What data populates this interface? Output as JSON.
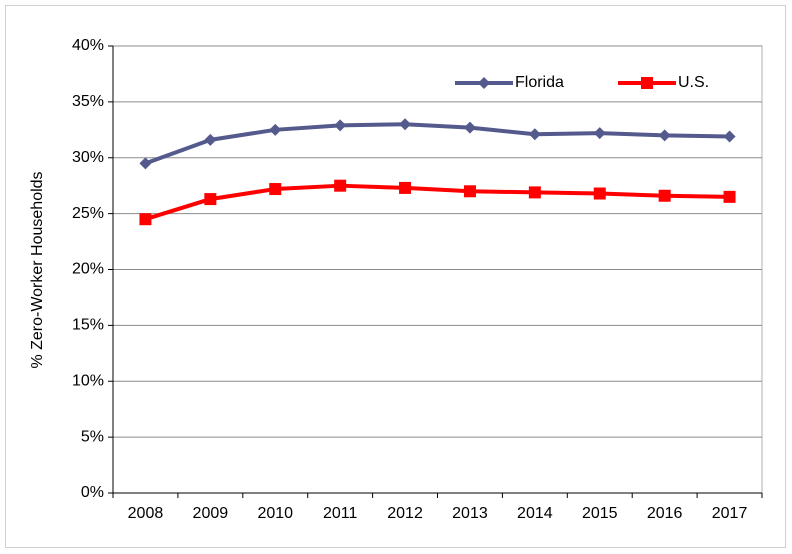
{
  "chart_data": {
    "type": "line",
    "y_label": "% Zero-Worker Households",
    "categories": [
      "2008",
      "2009",
      "2010",
      "2011",
      "2012",
      "2013",
      "2014",
      "2015",
      "2016",
      "2017"
    ],
    "series": [
      {
        "name": "Florida",
        "color": "#545a8c",
        "marker": "diamond",
        "values": [
          29.5,
          31.6,
          32.5,
          32.9,
          33.0,
          32.7,
          32.1,
          32.2,
          32.0,
          31.9
        ]
      },
      {
        "name": "U.S.",
        "color": "#ff0000",
        "marker": "square",
        "values": [
          24.5,
          26.3,
          27.2,
          27.5,
          27.3,
          27.0,
          26.9,
          26.8,
          26.6,
          26.5
        ]
      }
    ],
    "ylim": [
      0,
      40
    ],
    "yticks": [
      {
        "value": 0,
        "label": "0%"
      },
      {
        "value": 5,
        "label": "5%"
      },
      {
        "value": 10,
        "label": "10%"
      },
      {
        "value": 15,
        "label": "15%"
      },
      {
        "value": 20,
        "label": "20%"
      },
      {
        "value": 25,
        "label": "25%"
      },
      {
        "value": 30,
        "label": "30%"
      },
      {
        "value": 35,
        "label": "35%"
      },
      {
        "value": 40,
        "label": "40%"
      }
    ],
    "grid": true,
    "legend": "top-right"
  }
}
